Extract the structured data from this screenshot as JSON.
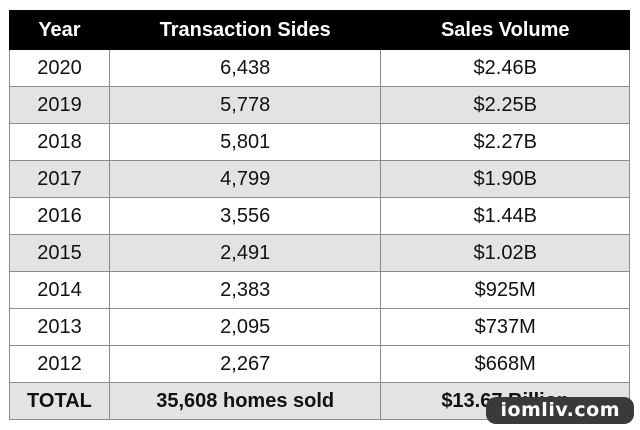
{
  "table": {
    "headers": [
      "Year",
      "Transaction Sides",
      "Sales Volume"
    ],
    "rows": [
      [
        "2020",
        "6,438",
        "$2.46B"
      ],
      [
        "2019",
        "5,778",
        "$2.25B"
      ],
      [
        "2018",
        "5,801",
        "$2.27B"
      ],
      [
        "2017",
        "4,799",
        "$1.90B"
      ],
      [
        "2016",
        "3,556",
        "$1.44B"
      ],
      [
        "2015",
        "2,491",
        "$1.02B"
      ],
      [
        "2014",
        "2,383",
        "$925M"
      ],
      [
        "2013",
        "2,095",
        "$737M"
      ],
      [
        "2012",
        "2,267",
        "$668M"
      ]
    ],
    "total": [
      "TOTAL",
      "35,608 homes sold",
      "$13.67 Billion"
    ]
  },
  "watermark": "iomliv.com",
  "colors": {
    "header_bg": "#000000",
    "header_text": "#ffffff",
    "shade_row": "#e3e3e3",
    "border": "#8c8c8c"
  }
}
